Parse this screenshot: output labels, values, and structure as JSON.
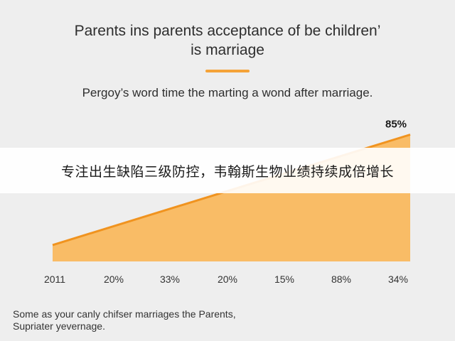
{
  "header": {
    "title_line1": "Parents ins parents acceptance of be children’",
    "title_line2": "is marriage",
    "accent_color": "#f5a338"
  },
  "subtitle": "Pergoy’s word time the marting a wond after marriage.",
  "overlay": {
    "text": "专注出生缺陷三级防控，韦翰斯生物业绩持续成倍增长"
  },
  "footnote": {
    "line1": "Some as your canly chifser marriages the Parents,",
    "line2": "Supriater yevernage."
  },
  "chart_data": {
    "type": "area",
    "categories": [
      "2011",
      "20%",
      "33%",
      "20%",
      "15%",
      "88%",
      "34%"
    ],
    "start_value": 11,
    "end_value": 85,
    "end_label": "85%",
    "ylim": [
      0,
      100
    ],
    "grid": false,
    "legend": "none",
    "line_color": "#f0931f",
    "fill_color": "#f9bc66"
  }
}
